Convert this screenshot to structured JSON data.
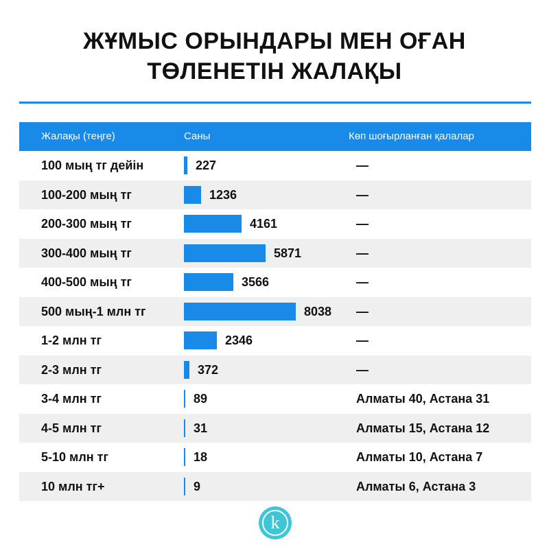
{
  "title_line1": "ЖҰМЫС ОРЫНДАРЫ МЕН ОҒАН",
  "title_line2": "ТӨЛЕНЕТІН ЖАЛАҚЫ",
  "colors": {
    "accent": "#1a8ae8",
    "stripe": "#efefef",
    "logo": "#3cc6d6"
  },
  "chart_data": {
    "type": "bar",
    "title": "ЖҰМЫС ОРЫНДАРЫ МЕН ОҒАН ТӨЛЕНЕТІН ЖАЛАҚЫ",
    "headers": [
      "Жалақы (теңге)",
      "Саны",
      "Көп шоғырланған қалалар"
    ],
    "categories": [
      "100 мың тг дейін",
      "100-200 мың тг",
      "200-300 мың тг",
      "300-400 мың тг",
      "400-500 мың тг",
      "500 мың-1 млн тг",
      "1-2 млн тг",
      "2-3 млн тг",
      "3-4 млн тг",
      "4-5 млн тг",
      "5-10 млн тг",
      "10 млн тг+"
    ],
    "values": [
      227,
      1236,
      4161,
      5871,
      3566,
      8038,
      2346,
      372,
      89,
      31,
      18,
      9
    ],
    "cities": [
      "—",
      "—",
      "—",
      "—",
      "—",
      "—",
      "—",
      "—",
      "Алматы 40, Астана 31",
      "Алматы 15, Астана 12",
      "Алматы 10, Астана 7",
      "Алматы 6, Астана 3"
    ],
    "xlim": [
      0,
      8038
    ]
  },
  "logo": {
    "letter": "k",
    "icon": "k-logo-icon"
  }
}
